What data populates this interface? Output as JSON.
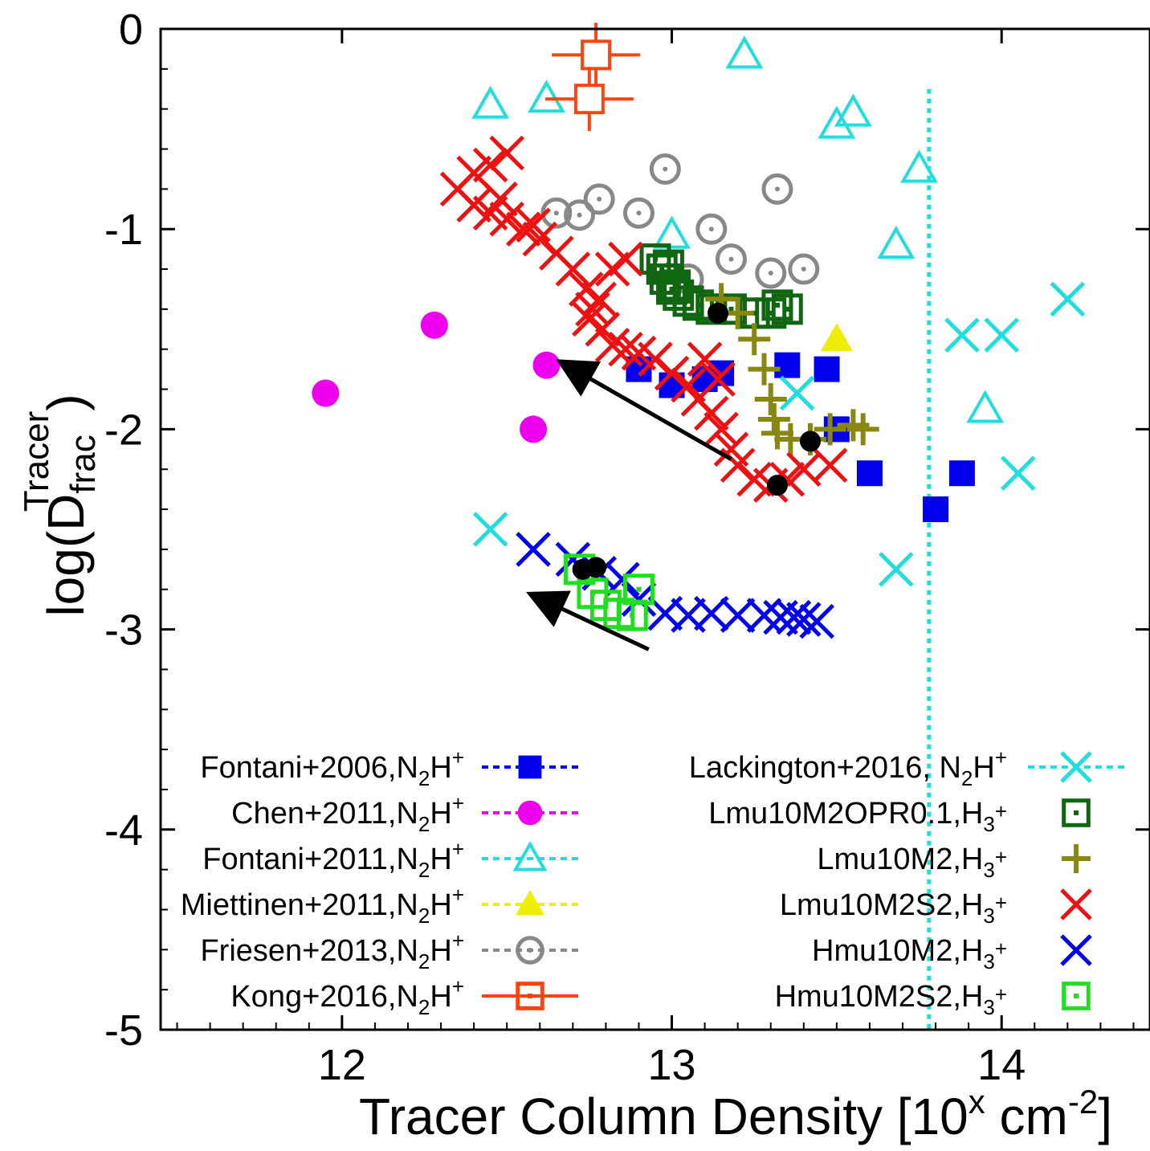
{
  "chart_data": {
    "type": "scatter",
    "xlabel": {
      "main": "Tracer Column Density [10",
      "sup1": "x",
      "mid": " cm",
      "sup2": "-2",
      "end": "]"
    },
    "ylabel": {
      "main": "log(D",
      "sub": "frac",
      "sup": "Tracer",
      "end": ")"
    },
    "xlim": [
      11.45,
      14.45
    ],
    "ylim": [
      -5,
      0
    ],
    "x_ticks": [
      {
        "value": 12,
        "label": "12"
      },
      {
        "value": 13,
        "label": "13"
      },
      {
        "value": 14,
        "label": "14"
      }
    ],
    "y_ticks": [
      {
        "value": 0,
        "label": "0"
      },
      {
        "value": -1,
        "label": "-1"
      },
      {
        "value": -2,
        "label": "-2"
      },
      {
        "value": -3,
        "label": "-3"
      },
      {
        "value": -4,
        "label": "-4"
      },
      {
        "value": -5,
        "label": "-5"
      }
    ],
    "grid": false,
    "legend_position": "bottom",
    "series": [
      {
        "name": "Fontani+2006,N2H+",
        "label": {
          "base": "Fontani+2006,N",
          "sub": "2",
          "mid": "H",
          "sup": "+"
        },
        "color": "#0000ee",
        "marker": "filled-square",
        "legend_col": 0,
        "legend_row": 0,
        "points": [
          [
            12.9,
            -1.7
          ],
          [
            13.0,
            -1.78
          ],
          [
            13.1,
            -1.75
          ],
          [
            13.15,
            -1.72
          ],
          [
            13.35,
            -1.68
          ],
          [
            13.47,
            -1.7
          ],
          [
            13.5,
            -2.0
          ],
          [
            13.6,
            -2.22
          ],
          [
            13.8,
            -2.4
          ],
          [
            13.88,
            -2.22
          ]
        ]
      },
      {
        "name": "Chen+2011,N2H+",
        "label": {
          "base": "Chen+2011,N",
          "sub": "2",
          "mid": "H",
          "sup": "+"
        },
        "color": "#ee00ee",
        "marker": "filled-circle",
        "legend_col": 0,
        "legend_row": 1,
        "points": [
          [
            11.95,
            -1.82
          ],
          [
            12.28,
            -1.48
          ],
          [
            12.62,
            -1.68
          ],
          [
            12.58,
            -2.0
          ]
        ]
      },
      {
        "name": "Fontani+2011,N2H+",
        "label": {
          "base": "Fontani+2011,N",
          "sub": "2",
          "mid": "H",
          "sup": "+"
        },
        "color": "#22dddd",
        "marker": "open-triangle",
        "legend_col": 0,
        "legend_row": 2,
        "points": [
          [
            12.45,
            -0.38
          ],
          [
            12.62,
            -0.35
          ],
          [
            13.22,
            -0.13
          ],
          [
            13.5,
            -0.48
          ],
          [
            13.55,
            -0.42
          ],
          [
            13.75,
            -0.7
          ],
          [
            13.68,
            -1.08
          ],
          [
            13.95,
            -1.9
          ],
          [
            13.0,
            -1.03
          ]
        ]
      },
      {
        "name": "Miettinen+2011,N2H+",
        "label": {
          "base": "Miettinen+2011,N",
          "sub": "2",
          "mid": "H",
          "sup": "+"
        },
        "color": "#eeee00",
        "marker": "filled-triangle",
        "legend_col": 0,
        "legend_row": 3,
        "points": [
          [
            13.5,
            -1.55
          ]
        ]
      },
      {
        "name": "Friesen+2013,N2H+",
        "label": {
          "base": "Friesen+2013,N",
          "sub": "2",
          "mid": "H",
          "sup": "+"
        },
        "color": "#888888",
        "marker": "open-circle-dot",
        "legend_col": 0,
        "legend_row": 4,
        "points": [
          [
            12.65,
            -0.92
          ],
          [
            12.72,
            -0.93
          ],
          [
            12.78,
            -0.85
          ],
          [
            12.9,
            -0.92
          ],
          [
            12.98,
            -0.7
          ],
          [
            13.12,
            -1.0
          ],
          [
            13.18,
            -1.15
          ],
          [
            13.3,
            -1.22
          ],
          [
            13.32,
            -0.8
          ],
          [
            13.4,
            -1.2
          ],
          [
            13.05,
            -1.25
          ]
        ]
      },
      {
        "name": "Kong+2016,N2H+",
        "label": {
          "base": "Kong+2016,N",
          "sub": "2",
          "mid": "H",
          "sup": "+"
        },
        "color": "#ff4411",
        "marker": "open-square-errbar",
        "legend_col": 0,
        "legend_row": 5,
        "points": [
          [
            12.77,
            -0.13
          ],
          [
            12.75,
            -0.35
          ]
        ]
      },
      {
        "name": "Lackington+2016, N2H+",
        "label": {
          "base": "Lackington+2016, N",
          "sub": "2",
          "mid": "H",
          "sup": "+"
        },
        "color": "#22dddd",
        "marker": "x",
        "legend_col": 1,
        "legend_row": 0,
        "points": [
          [
            12.45,
            -2.5
          ],
          [
            13.88,
            -1.53
          ],
          [
            14.0,
            -1.53
          ],
          [
            14.2,
            -1.35
          ],
          [
            14.05,
            -2.22
          ],
          [
            13.68,
            -2.7
          ],
          [
            13.38,
            -1.82
          ]
        ]
      },
      {
        "name": "Lmu10M2OPR0.1,H3+",
        "label": {
          "base": "Lmu10M2OPR0.1,H",
          "sub": "3",
          "mid": "",
          "sup": "+"
        },
        "color": "#116611",
        "marker": "open-square-dot",
        "legend_col": 1,
        "legend_row": 1,
        "points": [
          [
            12.95,
            -1.15
          ],
          [
            12.97,
            -1.2
          ],
          [
            12.98,
            -1.25
          ],
          [
            13.0,
            -1.3
          ],
          [
            13.02,
            -1.33
          ],
          [
            13.05,
            -1.36
          ],
          [
            13.08,
            -1.38
          ],
          [
            13.12,
            -1.4
          ],
          [
            13.18,
            -1.4
          ],
          [
            13.25,
            -1.42
          ],
          [
            13.3,
            -1.42
          ],
          [
            13.35,
            -1.4
          ],
          [
            13.32,
            -1.38
          ],
          [
            12.99,
            -1.18
          ],
          [
            13.01,
            -1.28
          ]
        ]
      },
      {
        "name": "Lmu10M2,H3+",
        "label": {
          "base": "Lmu10M2,H",
          "sub": "3",
          "mid": "",
          "sup": "+"
        },
        "color": "#888811",
        "marker": "plus",
        "legend_col": 1,
        "legend_row": 2,
        "points": [
          [
            13.15,
            -1.35
          ],
          [
            13.2,
            -1.42
          ],
          [
            13.25,
            -1.55
          ],
          [
            13.28,
            -1.7
          ],
          [
            13.3,
            -1.85
          ],
          [
            13.31,
            -1.95
          ],
          [
            13.32,
            -2.02
          ],
          [
            13.36,
            -2.05
          ],
          [
            13.42,
            -2.05
          ],
          [
            13.48,
            -2.0
          ],
          [
            13.55,
            -1.98
          ],
          [
            13.58,
            -2.0
          ]
        ]
      },
      {
        "name": "Lmu10M2S2,H3+",
        "label": {
          "base": "Lmu10M2S2,H",
          "sub": "3",
          "mid": "",
          "sup": "+"
        },
        "color": "#ee1111",
        "marker": "x",
        "legend_col": 1,
        "legend_row": 3,
        "points": [
          [
            12.35,
            -0.8
          ],
          [
            12.4,
            -0.72
          ],
          [
            12.45,
            -0.68
          ],
          [
            12.5,
            -0.62
          ],
          [
            12.4,
            -0.88
          ],
          [
            12.45,
            -0.92
          ],
          [
            12.5,
            -0.95
          ],
          [
            12.55,
            -1.0
          ],
          [
            12.6,
            -1.05
          ],
          [
            12.65,
            -1.12
          ],
          [
            12.7,
            -1.2
          ],
          [
            12.74,
            -1.3
          ],
          [
            12.76,
            -1.4
          ],
          [
            12.79,
            -1.5
          ],
          [
            12.82,
            -1.58
          ],
          [
            12.86,
            -1.6
          ],
          [
            12.9,
            -1.62
          ],
          [
            12.95,
            -1.65
          ],
          [
            13.0,
            -1.72
          ],
          [
            13.05,
            -1.78
          ],
          [
            13.08,
            -1.85
          ],
          [
            13.12,
            -1.92
          ],
          [
            13.15,
            -2.0
          ],
          [
            13.18,
            -2.1
          ],
          [
            13.2,
            -2.18
          ],
          [
            13.25,
            -2.25
          ],
          [
            13.3,
            -2.28
          ],
          [
            13.35,
            -2.25
          ],
          [
            13.4,
            -2.2
          ],
          [
            13.48,
            -2.18
          ],
          [
            12.82,
            -1.2
          ],
          [
            12.86,
            -1.15
          ],
          [
            12.78,
            -1.35
          ],
          [
            12.75,
            -1.45
          ],
          [
            13.1,
            -1.65
          ],
          [
            13.14,
            -1.75
          ],
          [
            12.48,
            -0.85
          ],
          [
            12.58,
            -0.98
          ]
        ]
      },
      {
        "name": "Hmu10M2,H3+",
        "label": {
          "base": "Hmu10M2,H",
          "sub": "3",
          "mid": "",
          "sup": "+"
        },
        "color": "#0000ee",
        "marker": "x",
        "legend_col": 1,
        "legend_row": 4,
        "points": [
          [
            12.58,
            -2.6
          ],
          [
            12.7,
            -2.65
          ],
          [
            12.78,
            -2.72
          ],
          [
            12.85,
            -2.75
          ],
          [
            12.9,
            -2.85
          ],
          [
            12.98,
            -2.92
          ],
          [
            13.05,
            -2.93
          ],
          [
            13.12,
            -2.92
          ],
          [
            13.2,
            -2.93
          ],
          [
            13.28,
            -2.93
          ],
          [
            13.33,
            -2.94
          ],
          [
            13.37,
            -2.94
          ],
          [
            13.4,
            -2.95
          ],
          [
            13.44,
            -2.96
          ]
        ]
      },
      {
        "name": "Hmu10M2S2,H3+",
        "label": {
          "base": "Hmu10M2S2,H",
          "sub": "3",
          "mid": "",
          "sup": "+"
        },
        "color": "#22dd22",
        "marker": "open-square-dot",
        "legend_col": 1,
        "legend_row": 5,
        "points": [
          [
            12.72,
            -2.7
          ],
          [
            12.76,
            -2.82
          ],
          [
            12.8,
            -2.88
          ],
          [
            12.84,
            -2.92
          ],
          [
            12.88,
            -2.93
          ],
          [
            12.9,
            -2.8
          ]
        ]
      }
    ],
    "black_points": [
      [
        13.14,
        -1.42
      ],
      [
        13.32,
        -2.28
      ],
      [
        13.42,
        -2.06
      ],
      [
        12.73,
        -2.7
      ],
      [
        12.77,
        -2.69
      ]
    ],
    "arrows": [
      {
        "from": [
          13.18,
          -2.15
        ],
        "to": [
          12.67,
          -1.67
        ]
      },
      {
        "from": [
          12.93,
          -3.1
        ],
        "to": [
          12.58,
          -2.83
        ]
      }
    ],
    "vertical_line": {
      "x": 13.78,
      "color": "#22dddd"
    }
  }
}
